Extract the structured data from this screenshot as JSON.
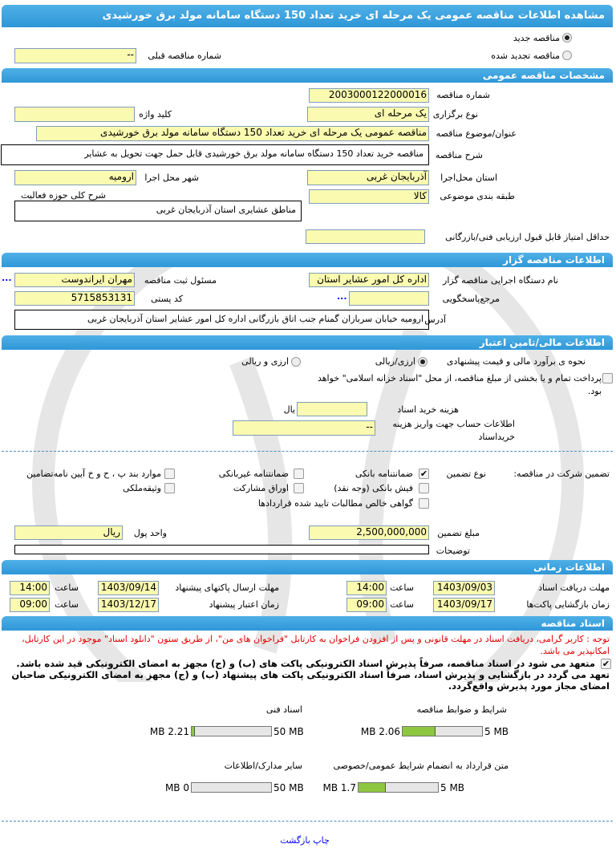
{
  "title": "مشاهده اطلاعات مناقصه عمومی یک مرحله ای خرید تعداد 150 دستگاه سامانه مولد برق خورشیدی",
  "tender_type": {
    "new_label": "مناقصه جدید",
    "renewed_label": "مناقصه تجدید شده",
    "selected": "new"
  },
  "prev_number": {
    "label": "شماره مناقصه قبلی",
    "value": "--"
  },
  "general": {
    "header": "مشخصات مناقصه عمومی",
    "number_label": "شماره مناقصه",
    "number": "2003000122000016",
    "holding_type_label": "نوع برگزاری",
    "holding_type": "یک مرحله ای",
    "keyword_label": "کلید واژه",
    "keyword": "",
    "subject_label": "عنوان/موضوع مناقصه",
    "subject": "مناقصه عمومی یک مرحله ای خرید تعداد 150 دستگاه سامانه مولد برق خورشیدی",
    "description_label": "شرح مناقصه",
    "description": "مناقصه خرید تعداد 150 دستگاه سامانه مولد برق خورشیدی قابل حمل جهت تحویل به عشایر",
    "province_label": "استان محل‌اجرا",
    "province": "آذربایجان غربی",
    "city_label": "شهر محل اجرا",
    "city": "ارومیه",
    "category_label": "طبقه بندی موضوعی",
    "category": "کالا",
    "scope_label": "شرح کلی حوزه فعالیت",
    "scope": "مناطق عشایری استان آذربایجان غربی",
    "min_score_label": "حداقل امتیاز قابل قبول ارزیابی فنی/بازرگانی",
    "min_score": ""
  },
  "organizer": {
    "header": "اطلاعات مناقصه گزار",
    "org_label": "نام دستگاه اجرایی مناقصه گزار",
    "org": "اداره کل امور عشایر استان",
    "responsible_label": "مسئول ثبت مناقصه",
    "responsible": "مهران ایراندوست",
    "ref_label": "مرجع‌پاسخگویی",
    "ref": "",
    "postal_label": "کد پستی",
    "postal": "5715853131",
    "address_label": "آدرس",
    "address": "ارومیه خیابان سربازان گمنام جنب اتاق بازرگانی اداره کل امور عشایر استان آذربایجان غربی",
    "more": "..."
  },
  "finance": {
    "header": "اطلاعات مالی/تامین اعتبار",
    "method_label": "نحوه ی برآورد مالی و قیمت پیشنهادی",
    "opt1": "ارزی/ریالی",
    "opt2": "ارزی و ریالی",
    "selected": "opt1",
    "treasury_label": "پرداخت تمام و یا بخشی از مبلغ مناقصه، از محل \"اسناد خزانه اسلامی\" خواهد بود.",
    "treasury_checked": false,
    "doc_fee_label": "هزینه خرید اسناد",
    "doc_fee": "",
    "doc_fee_unit": "یال",
    "account_label": "اطلاعات حساب جهت واریز هزینه خریداسناد",
    "account": "--"
  },
  "guarantee": {
    "label": "تضمین شرکت در مناقصه:",
    "type_label": "نوع تضمین",
    "options": [
      {
        "label": "ضمانتنامه بانکی",
        "checked": true
      },
      {
        "label": "ضمانتنامه غیربانکی",
        "checked": false
      },
      {
        "label": "موارد بند پ ، ح و خ آیین نامه‌تضامین",
        "checked": false
      },
      {
        "label": "فیش بانکی (وجه نقد)",
        "checked": false
      },
      {
        "label": "اوراق مشارکت",
        "checked": false
      },
      {
        "label": "وثیقه‌ملکی",
        "checked": false
      },
      {
        "label": "گواهی خالص مطالبات تایید شده قراردادها",
        "checked": false
      }
    ],
    "amount_label": "مبلغ تضمین",
    "amount": "2,500,000,000",
    "currency_label": "واحد پول",
    "currency": "ریال",
    "notes_label": "توضیحات",
    "notes": ""
  },
  "timing": {
    "header": "اطلاعات زمانی",
    "hour_label": "ساعت",
    "doc_receive_label": "مهلت دریافت اسناد",
    "doc_receive_date": "1403/09/03",
    "doc_receive_time": "14:00",
    "submit_label": "مهلت ارسال پاکتهای پیشنهاد",
    "submit_date": "1403/09/14",
    "submit_time": "14:00",
    "opening_label": "زمان بازگشایی پاکت‌ها",
    "opening_date": "1403/09/17",
    "opening_time": "09:00",
    "validity_label": "زمان اعتبار پیشنهاد",
    "validity_date": "1403/12/17",
    "validity_time": "09:00"
  },
  "documents": {
    "header": "اسناد مناقصه",
    "notice": "توجه : کاربر گرامی، دریافت اسناد در مهلت قانونی و پس از افزودن فراخوان به کارتابل \"فراخوان های من\"، از طریق ستون \"دانلود اسناد\" موجود در این کارتابل، امکانپذیر می باشد.",
    "commit_text": "متعهد می شود در اسناد مناقصه، صرفاً پذیرش اسناد الکترونیکی پاکت های (ب) و (ج) مجهز به امضای الکترونیکی قید شده باشد. تعهد می گردد در بازگشایی و پذیرش اسناد، صرفاً اسناد الکترونیکی پاکت های پیشنهاد (ب) و (ج) مجهز به امضای الکترونیکی صاحبان امضای مجاز مورد پذیرش واقع‌گردد.",
    "commit_checked": true,
    "files": [
      {
        "label": "شرایط و ضوابط مناقصه",
        "size": "2.06 MB",
        "max": "5 MB",
        "fill": 0.41
      },
      {
        "label": "اسناد فنی",
        "size": "2.21 MB",
        "max": "50 MB",
        "fill": 0.044
      },
      {
        "label": "متن قرارداد به انضمام شرایط عمومی/خصوصی",
        "size": "1.7 MB",
        "max": "5 MB",
        "fill": 0.34
      },
      {
        "label": "سایر مدارک/اطلاعات",
        "size": "0 MB",
        "max": "50 MB",
        "fill": 0
      }
    ]
  },
  "footer": {
    "print_back": "چاپ بازگشت"
  },
  "colors": {
    "header": "#3aa0dc",
    "field": "#fafab0",
    "notice": "#e00000",
    "progress": "#8dc63f",
    "link": "#0000ee"
  }
}
